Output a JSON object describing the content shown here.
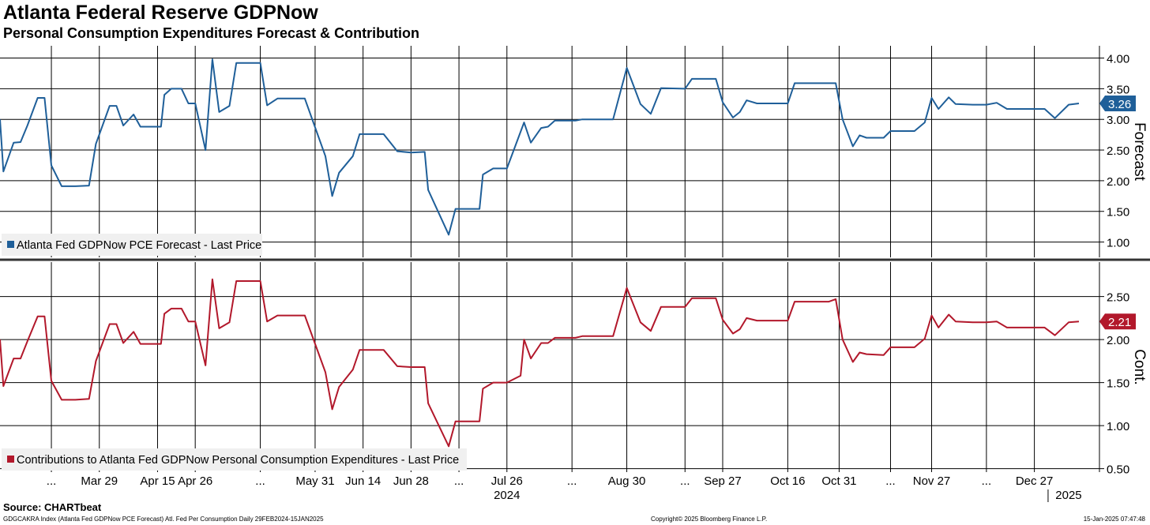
{
  "header": {
    "title": "Atlanta Federal Reserve GDPNow",
    "subtitle": "Personal Consumption Expenditures Forecast & Contribution"
  },
  "footer": {
    "source": "Source: CHARTbeat",
    "index_info": "GDGCAKRA Index (Atlanta Fed GDPNow PCE Forecast) Atl. Fed Per Consumption  Daily 29FEB2024-15JAN2025",
    "copyright": "Copyright© 2025 Bloomberg Finance L.P.",
    "timestamp": "15-Jan-2025 07:47:48"
  },
  "colors": {
    "forecast": "#1f5f99",
    "contribution": "#b2182b",
    "grid": "#000000",
    "divider": "#333333"
  },
  "chart_data": [
    {
      "type": "line",
      "panel": "top",
      "axis_label": "Forecast",
      "ylim": [
        0.75,
        4.2
      ],
      "yticks": [
        "1.00",
        "1.50",
        "2.00",
        "2.50",
        "3.00",
        "3.50",
        "4.00"
      ],
      "last_value_label": "3.26",
      "legend_position": "bottom-left",
      "grid": true,
      "series": [
        {
          "name": "Atlanta Fed GDPNow PCE Forecast - Last Price",
          "points": [
            [
              "2024-02-29",
              3.0
            ],
            [
              "2024-03-01",
              2.15
            ],
            [
              "2024-03-04",
              2.62
            ],
            [
              "2024-03-06",
              2.63
            ],
            [
              "2024-03-08",
              2.9
            ],
            [
              "2024-03-11",
              3.35
            ],
            [
              "2024-03-13",
              3.35
            ],
            [
              "2024-03-15",
              2.25
            ],
            [
              "2024-03-18",
              1.91
            ],
            [
              "2024-03-22",
              1.91
            ],
            [
              "2024-03-26",
              1.92
            ],
            [
              "2024-03-28",
              2.6
            ],
            [
              "2024-04-01",
              3.22
            ],
            [
              "2024-04-03",
              3.22
            ],
            [
              "2024-04-05",
              2.9
            ],
            [
              "2024-04-08",
              3.08
            ],
            [
              "2024-04-10",
              2.88
            ],
            [
              "2024-04-16",
              2.88
            ],
            [
              "2024-04-17",
              3.4
            ],
            [
              "2024-04-19",
              3.5
            ],
            [
              "2024-04-22",
              3.5
            ],
            [
              "2024-04-24",
              3.26
            ],
            [
              "2024-04-26",
              3.26
            ],
            [
              "2024-04-29",
              2.5
            ],
            [
              "2024-05-01",
              3.98
            ],
            [
              "2024-05-03",
              3.12
            ],
            [
              "2024-05-06",
              3.22
            ],
            [
              "2024-05-08",
              3.92
            ],
            [
              "2024-05-15",
              3.92
            ],
            [
              "2024-05-17",
              3.23
            ],
            [
              "2024-05-20",
              3.34
            ],
            [
              "2024-05-28",
              3.34
            ],
            [
              "2024-06-03",
              2.4
            ],
            [
              "2024-06-05",
              1.75
            ],
            [
              "2024-06-07",
              2.13
            ],
            [
              "2024-06-11",
              2.4
            ],
            [
              "2024-06-13",
              2.76
            ],
            [
              "2024-06-20",
              2.76
            ],
            [
              "2024-06-24",
              2.48
            ],
            [
              "2024-06-28",
              2.46
            ],
            [
              "2024-07-02",
              2.47
            ],
            [
              "2024-07-03",
              1.85
            ],
            [
              "2024-07-09",
              1.12
            ],
            [
              "2024-07-11",
              1.54
            ],
            [
              "2024-07-18",
              1.54
            ],
            [
              "2024-07-19",
              2.1
            ],
            [
              "2024-07-22",
              2.2
            ],
            [
              "2024-07-26",
              2.2
            ],
            [
              "2024-07-31",
              2.95
            ],
            [
              "2024-08-02",
              2.62
            ],
            [
              "2024-08-05",
              2.86
            ],
            [
              "2024-08-07",
              2.88
            ],
            [
              "2024-08-09",
              2.98
            ],
            [
              "2024-08-15",
              2.98
            ],
            [
              "2024-08-17",
              3.0
            ],
            [
              "2024-08-26",
              3.0
            ],
            [
              "2024-08-30",
              3.84
            ],
            [
              "2024-09-03",
              3.25
            ],
            [
              "2024-09-06",
              3.09
            ],
            [
              "2024-09-09",
              3.51
            ],
            [
              "2024-09-16",
              3.5
            ],
            [
              "2024-09-18",
              3.66
            ],
            [
              "2024-09-25",
              3.66
            ],
            [
              "2024-09-27",
              3.28
            ],
            [
              "2024-09-30",
              3.03
            ],
            [
              "2024-10-02",
              3.12
            ],
            [
              "2024-10-04",
              3.31
            ],
            [
              "2024-10-07",
              3.26
            ],
            [
              "2024-10-16",
              3.26
            ],
            [
              "2024-10-18",
              3.59
            ],
            [
              "2024-10-30",
              3.59
            ],
            [
              "2024-11-01",
              3.0
            ],
            [
              "2024-11-04",
              2.56
            ],
            [
              "2024-11-06",
              2.74
            ],
            [
              "2024-11-08",
              2.7
            ],
            [
              "2024-11-13",
              2.7
            ],
            [
              "2024-11-15",
              2.81
            ],
            [
              "2024-11-22",
              2.81
            ],
            [
              "2024-11-25",
              2.95
            ],
            [
              "2024-11-27",
              3.35
            ],
            [
              "2024-11-29",
              3.17
            ],
            [
              "2024-12-02",
              3.36
            ],
            [
              "2024-12-04",
              3.25
            ],
            [
              "2024-12-09",
              3.24
            ],
            [
              "2024-12-13",
              3.24
            ],
            [
              "2024-12-16",
              3.27
            ],
            [
              "2024-12-19",
              3.17
            ],
            [
              "2024-12-30",
              3.17
            ],
            [
              "2025-01-02",
              3.02
            ],
            [
              "2025-01-06",
              3.24
            ],
            [
              "2025-01-09",
              3.26
            ]
          ]
        }
      ]
    },
    {
      "type": "line",
      "panel": "bottom",
      "axis_label": "Cont.",
      "ylim": [
        0.46,
        2.9
      ],
      "yticks": [
        "0.50",
        "1.00",
        "1.50",
        "2.00",
        "2.50"
      ],
      "last_value_label": "2.21",
      "legend_position": "bottom-left",
      "grid": true,
      "series": [
        {
          "name": "Contributions to Atlanta Fed GDPNow Personal Consumption Expenditures - Last Price",
          "points": [
            [
              "2024-02-29",
              2.0
            ],
            [
              "2024-03-01",
              1.46
            ],
            [
              "2024-03-04",
              1.78
            ],
            [
              "2024-03-06",
              1.78
            ],
            [
              "2024-03-08",
              1.98
            ],
            [
              "2024-03-11",
              2.27
            ],
            [
              "2024-03-13",
              2.27
            ],
            [
              "2024-03-15",
              1.52
            ],
            [
              "2024-03-18",
              1.3
            ],
            [
              "2024-03-22",
              1.3
            ],
            [
              "2024-03-26",
              1.31
            ],
            [
              "2024-03-28",
              1.75
            ],
            [
              "2024-04-01",
              2.18
            ],
            [
              "2024-04-03",
              2.18
            ],
            [
              "2024-04-05",
              1.96
            ],
            [
              "2024-04-08",
              2.09
            ],
            [
              "2024-04-10",
              1.95
            ],
            [
              "2024-04-16",
              1.95
            ],
            [
              "2024-04-17",
              2.3
            ],
            [
              "2024-04-19",
              2.36
            ],
            [
              "2024-04-22",
              2.36
            ],
            [
              "2024-04-24",
              2.21
            ],
            [
              "2024-04-26",
              2.21
            ],
            [
              "2024-04-29",
              1.7
            ],
            [
              "2024-05-01",
              2.7
            ],
            [
              "2024-05-03",
              2.13
            ],
            [
              "2024-05-06",
              2.2
            ],
            [
              "2024-05-08",
              2.68
            ],
            [
              "2024-05-15",
              2.68
            ],
            [
              "2024-05-17",
              2.21
            ],
            [
              "2024-05-20",
              2.28
            ],
            [
              "2024-05-28",
              2.28
            ],
            [
              "2024-06-03",
              1.62
            ],
            [
              "2024-06-05",
              1.19
            ],
            [
              "2024-06-07",
              1.45
            ],
            [
              "2024-06-11",
              1.65
            ],
            [
              "2024-06-13",
              1.88
            ],
            [
              "2024-06-20",
              1.88
            ],
            [
              "2024-06-24",
              1.69
            ],
            [
              "2024-06-28",
              1.68
            ],
            [
              "2024-07-02",
              1.68
            ],
            [
              "2024-07-03",
              1.26
            ],
            [
              "2024-07-09",
              0.76
            ],
            [
              "2024-07-11",
              1.05
            ],
            [
              "2024-07-18",
              1.05
            ],
            [
              "2024-07-19",
              1.43
            ],
            [
              "2024-07-22",
              1.5
            ],
            [
              "2024-07-26",
              1.5
            ],
            [
              "2024-07-30",
              1.58
            ],
            [
              "2024-07-31",
              2.0
            ],
            [
              "2024-08-02",
              1.78
            ],
            [
              "2024-08-05",
              1.96
            ],
            [
              "2024-08-07",
              1.96
            ],
            [
              "2024-08-09",
              2.02
            ],
            [
              "2024-08-15",
              2.02
            ],
            [
              "2024-08-17",
              2.04
            ],
            [
              "2024-08-26",
              2.04
            ],
            [
              "2024-08-30",
              2.6
            ],
            [
              "2024-09-03",
              2.2
            ],
            [
              "2024-09-06",
              2.1
            ],
            [
              "2024-09-09",
              2.38
            ],
            [
              "2024-09-16",
              2.38
            ],
            [
              "2024-09-18",
              2.48
            ],
            [
              "2024-09-25",
              2.48
            ],
            [
              "2024-09-27",
              2.23
            ],
            [
              "2024-09-30",
              2.07
            ],
            [
              "2024-10-02",
              2.12
            ],
            [
              "2024-10-04",
              2.25
            ],
            [
              "2024-10-07",
              2.22
            ],
            [
              "2024-10-16",
              2.22
            ],
            [
              "2024-10-18",
              2.44
            ],
            [
              "2024-10-28",
              2.44
            ],
            [
              "2024-10-30",
              2.47
            ],
            [
              "2024-11-01",
              2.0
            ],
            [
              "2024-11-04",
              1.74
            ],
            [
              "2024-11-06",
              1.85
            ],
            [
              "2024-11-08",
              1.83
            ],
            [
              "2024-11-13",
              1.82
            ],
            [
              "2024-11-15",
              1.91
            ],
            [
              "2024-11-22",
              1.91
            ],
            [
              "2024-11-25",
              2.01
            ],
            [
              "2024-11-27",
              2.28
            ],
            [
              "2024-11-29",
              2.14
            ],
            [
              "2024-12-02",
              2.29
            ],
            [
              "2024-12-04",
              2.21
            ],
            [
              "2024-12-09",
              2.2
            ],
            [
              "2024-12-13",
              2.2
            ],
            [
              "2024-12-16",
              2.21
            ],
            [
              "2024-12-19",
              2.14
            ],
            [
              "2024-12-30",
              2.14
            ],
            [
              "2025-01-02",
              2.05
            ],
            [
              "2025-01-06",
              2.2
            ],
            [
              "2025-01-09",
              2.21
            ]
          ]
        }
      ]
    }
  ],
  "x_axis": {
    "range": [
      "2024-02-29",
      "2025-01-15"
    ],
    "tick_labels": [
      {
        "date": "2024-03-15",
        "label": "..."
      },
      {
        "date": "2024-03-29",
        "label": "Mar 29"
      },
      {
        "date": "2024-04-15",
        "label": "Apr 15"
      },
      {
        "date": "2024-04-26",
        "label": "Apr 26"
      },
      {
        "date": "2024-05-15",
        "label": "..."
      },
      {
        "date": "2024-05-31",
        "label": "May 31"
      },
      {
        "date": "2024-06-14",
        "label": "Jun 14"
      },
      {
        "date": "2024-06-28",
        "label": "Jun 28"
      },
      {
        "date": "2024-07-12",
        "label": "..."
      },
      {
        "date": "2024-07-26",
        "label": "Jul 26"
      },
      {
        "date": "2024-08-14",
        "label": "..."
      },
      {
        "date": "2024-08-30",
        "label": "Aug 30"
      },
      {
        "date": "2024-09-16",
        "label": "..."
      },
      {
        "date": "2024-09-27",
        "label": "Sep 27"
      },
      {
        "date": "2024-10-16",
        "label": "Oct 16"
      },
      {
        "date": "2024-10-31",
        "label": "Oct 31"
      },
      {
        "date": "2024-11-15",
        "label": "..."
      },
      {
        "date": "2024-11-27",
        "label": "Nov 27"
      },
      {
        "date": "2024-12-13",
        "label": "..."
      },
      {
        "date": "2024-12-27",
        "label": "Dec 27"
      }
    ],
    "year_labels": [
      {
        "date": "2024-07-26",
        "label": "2024"
      },
      {
        "date": "2025-01-06",
        "label": "2025"
      }
    ]
  }
}
